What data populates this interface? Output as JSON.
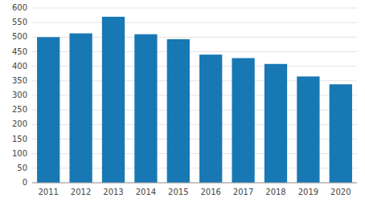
{
  "chart_data": {
    "type": "bar",
    "categories": [
      "2011",
      "2012",
      "2013",
      "2014",
      "2015",
      "2016",
      "2017",
      "2018",
      "2019",
      "2020"
    ],
    "values": [
      500,
      513,
      570,
      510,
      493,
      440,
      428,
      408,
      365,
      338
    ],
    "color": "#1878b4",
    "ylim": [
      0,
      600
    ],
    "yticks": [
      0,
      50,
      100,
      150,
      200,
      250,
      300,
      350,
      400,
      450,
      500,
      550,
      600
    ],
    "grid": true
  }
}
